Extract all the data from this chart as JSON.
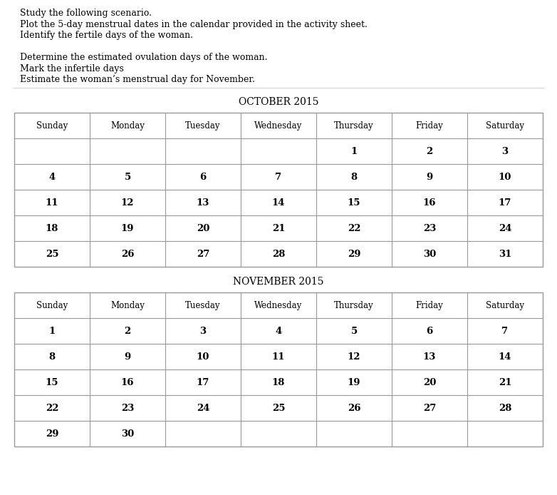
{
  "instructions": [
    "Study the following scenario.",
    "Plot the 5-day menstrual dates in the calendar provided in the activity sheet.",
    "Identify the fertile days of the woman.",
    "",
    "Determine the estimated ovulation days of the woman.",
    "Mark the infertile days",
    "Estimate the woman’s menstrual day for November."
  ],
  "october_title": "OCTOBER 2015",
  "november_title": "NOVEMBER 2015",
  "days_header": [
    "Sunday",
    "Monday",
    "Tuesday",
    "Wednesday",
    "Thursday",
    "Friday",
    "Saturday"
  ],
  "october_weeks": [
    [
      "",
      "",
      "",
      "",
      "1",
      "2",
      "3"
    ],
    [
      "4",
      "5",
      "6",
      "7",
      "8",
      "9",
      "10"
    ],
    [
      "11",
      "12",
      "13",
      "14",
      "15",
      "16",
      "17"
    ],
    [
      "18",
      "19",
      "20",
      "21",
      "22",
      "23",
      "24"
    ],
    [
      "25",
      "26",
      "27",
      "28",
      "29",
      "30",
      "31"
    ]
  ],
  "november_weeks": [
    [
      "1",
      "2",
      "3",
      "4",
      "5",
      "6",
      "7"
    ],
    [
      "8",
      "9",
      "10",
      "11",
      "12",
      "13",
      "14"
    ],
    [
      "15",
      "16",
      "17",
      "18",
      "19",
      "20",
      "21"
    ],
    [
      "22",
      "23",
      "24",
      "25",
      "26",
      "27",
      "28"
    ],
    [
      "29",
      "30",
      "",
      "",
      "",
      "",
      ""
    ]
  ],
  "bg_color": "#ffffff",
  "text_color": "#000000",
  "grid_color": "#999999",
  "title_fontsize": 10,
  "header_fontsize": 8.5,
  "day_fontsize": 9.5,
  "instruction_fontsize": 9,
  "fig_width": 7.82,
  "fig_height": 6.94,
  "dpi": 100
}
